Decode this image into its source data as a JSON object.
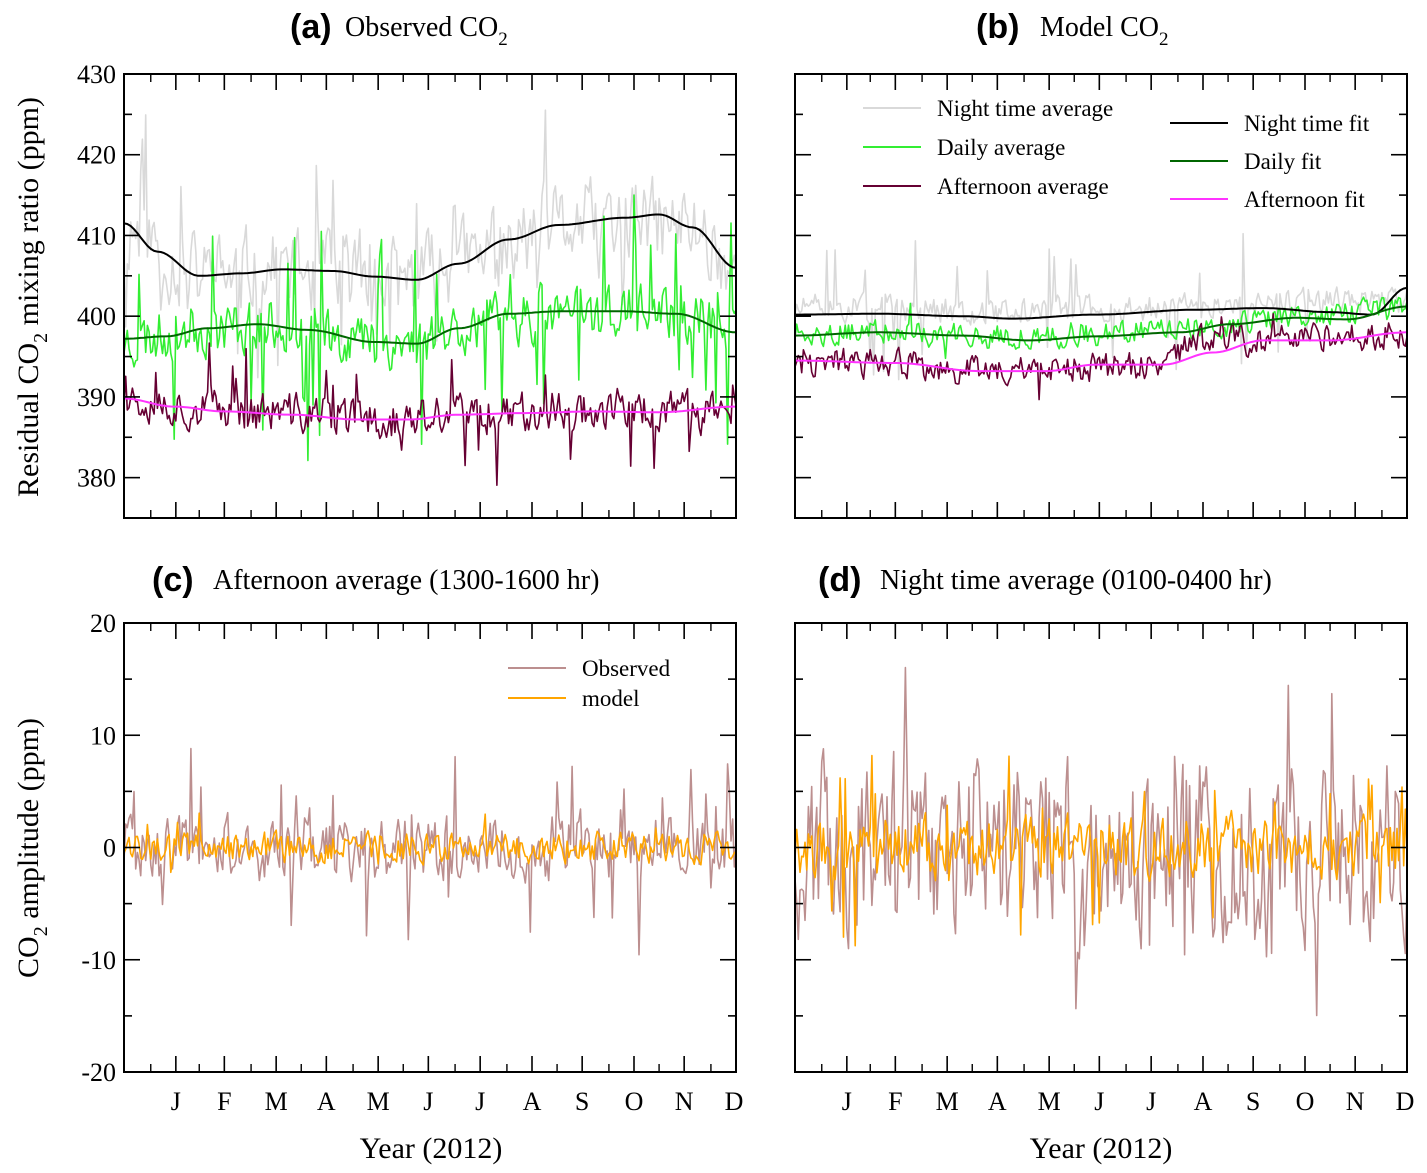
{
  "figure": {
    "xlabel": "Year (2012)",
    "ylabel_top": "Residual CO₂ mixing ratio (ppm)",
    "ylabel_bottom": "CO₂ amplitude (ppm)",
    "ylabel_top_parts": {
      "pre": "Residual CO",
      "sub": "2",
      "post": " mixing ratio (ppm)"
    },
    "ylabel_bottom_parts": {
      "pre": "CO",
      "sub": "2",
      "post": " amplitude (ppm)"
    },
    "month_ticks": [
      "J",
      "F",
      "M",
      "A",
      "M",
      "J",
      "J",
      "A",
      "S",
      "O",
      "N",
      "D"
    ]
  },
  "colors": {
    "night_avg": "#d9d9d9",
    "daily_avg": "#33ee33",
    "afternoon_avg": "#660033",
    "night_fit": "#000000",
    "daily_fit": "#006600",
    "afternoon_fit": "#ff33ff",
    "observed": "#bc8f8f",
    "model": "#ffa500"
  },
  "chart_data": [
    {
      "id": "a",
      "type": "line",
      "panel_letter": "(a)",
      "title": "Observed CO₂",
      "title_parts": {
        "pre": "Observed CO",
        "sub": "2"
      },
      "xlabel": "",
      "ylabel": "Residual CO₂ mixing ratio (ppm)",
      "xlim": [
        0,
        366
      ],
      "ylim": [
        375,
        430
      ],
      "yticks": [
        380,
        390,
        400,
        410,
        420,
        430
      ],
      "xtick_labels": [],
      "series": [
        {
          "key": "night_avg",
          "name": "Night time average",
          "kind": "noisy",
          "seed": 11,
          "base": [
            [
              0,
              411
            ],
            [
              45,
              405
            ],
            [
              90,
              406
            ],
            [
              120,
              405.5
            ],
            [
              165,
              404.5
            ],
            [
              210,
              407
            ],
            [
              255,
              411
            ],
            [
              300,
              412
            ],
            [
              340,
              411
            ],
            [
              366,
              406
            ]
          ],
          "amp": 6,
          "spike_prob": 0.09,
          "spike_amp": 11,
          "step": 1
        },
        {
          "key": "daily_avg",
          "name": "Daily average",
          "kind": "noisy",
          "seed": 23,
          "base": [
            [
              0,
              397
            ],
            [
              45,
              398.5
            ],
            [
              90,
              399
            ],
            [
              120,
              398
            ],
            [
              165,
              396.5
            ],
            [
              210,
              399
            ],
            [
              255,
              400.5
            ],
            [
              300,
              400.5
            ],
            [
              340,
              400
            ],
            [
              366,
              399
            ]
          ],
          "amp": 4,
          "spike_prob": 0.06,
          "spike_amp": 14,
          "step": 1
        },
        {
          "key": "afternoon_avg",
          "name": "Afternoon average",
          "kind": "noisy",
          "seed": 37,
          "base": [
            [
              0,
              390
            ],
            [
              45,
              388.5
            ],
            [
              90,
              388
            ],
            [
              165,
              387
            ],
            [
              210,
              388
            ],
            [
              255,
              388.5
            ],
            [
              300,
              388.5
            ],
            [
              340,
              388
            ],
            [
              366,
              389
            ]
          ],
          "amp": 3,
          "spike_prob": 0.05,
          "spike_amp": 7,
          "step": 1
        },
        {
          "key": "night_fit",
          "name": "Night time fit",
          "kind": "fit",
          "points": [
            [
              0,
              411.5
            ],
            [
              20,
              408
            ],
            [
              45,
              405
            ],
            [
              70,
              405.3
            ],
            [
              95,
              405.8
            ],
            [
              125,
              405.6
            ],
            [
              150,
              404.9
            ],
            [
              175,
              404.5
            ],
            [
              200,
              406.5
            ],
            [
              230,
              409.5
            ],
            [
              260,
              411.3
            ],
            [
              300,
              412.2
            ],
            [
              320,
              412.6
            ],
            [
              340,
              411
            ],
            [
              366,
              406
            ]
          ]
        },
        {
          "key": "daily_fit",
          "name": "Daily fit",
          "kind": "fit",
          "points": [
            [
              0,
              397.2
            ],
            [
              25,
              397.5
            ],
            [
              50,
              398.5
            ],
            [
              80,
              399
            ],
            [
              110,
              398.3
            ],
            [
              150,
              396.8
            ],
            [
              175,
              396.6
            ],
            [
              200,
              398.5
            ],
            [
              230,
              400.3
            ],
            [
              260,
              400.6
            ],
            [
              300,
              400.6
            ],
            [
              330,
              400.3
            ],
            [
              366,
              398
            ]
          ]
        },
        {
          "key": "afternoon_fit",
          "name": "Afternoon fit",
          "kind": "fit",
          "points": [
            [
              0,
              389.8
            ],
            [
              30,
              388.8
            ],
            [
              60,
              388.2
            ],
            [
              100,
              387.8
            ],
            [
              140,
              387.2
            ],
            [
              170,
              387.2
            ],
            [
              200,
              387.8
            ],
            [
              240,
              388
            ],
            [
              280,
              388.2
            ],
            [
              320,
              388.1
            ],
            [
              366,
              388.8
            ]
          ]
        }
      ]
    },
    {
      "id": "b",
      "type": "line",
      "panel_letter": "(b)",
      "title": "Model CO₂",
      "title_parts": {
        "pre": "Model CO",
        "sub": "2"
      },
      "xlabel": "",
      "ylabel": "",
      "xlim": [
        0,
        366
      ],
      "ylim": [
        375,
        430
      ],
      "yticks": [
        380,
        390,
        400,
        410,
        420,
        430
      ],
      "xtick_labels": [],
      "legend": {
        "columns": [
          [
            "night_avg",
            "daily_avg",
            "afternoon_avg"
          ],
          [
            "night_fit",
            "daily_fit",
            "afternoon_fit"
          ]
        ],
        "labels": {
          "night_avg": "Night time average",
          "daily_avg": "Daily average",
          "afternoon_avg": "Afternoon average",
          "night_fit": "Night time fit",
          "daily_fit": "Daily fit",
          "afternoon_fit": "Afternoon fit"
        }
      },
      "series": [
        {
          "key": "night_avg",
          "name": "Night time average",
          "kind": "noisy",
          "seed": 51,
          "base": [
            [
              0,
              401
            ],
            [
              60,
              401
            ],
            [
              120,
              400.5
            ],
            [
              200,
              401
            ],
            [
              280,
              401.5
            ],
            [
              366,
              402
            ]
          ],
          "amp": 2,
          "spike_prob": 0.08,
          "spike_amp": 9,
          "step": 1
        },
        {
          "key": "daily_avg",
          "name": "Daily average",
          "kind": "noisy",
          "seed": 63,
          "base": [
            [
              0,
              398
            ],
            [
              60,
              398
            ],
            [
              120,
              397.5
            ],
            [
              200,
              398
            ],
            [
              255,
              399
            ],
            [
              300,
              400
            ],
            [
              366,
              401
            ]
          ],
          "amp": 1.8,
          "spike_prob": 0.02,
          "spike_amp": 3,
          "step": 1
        },
        {
          "key": "afternoon_avg",
          "name": "Afternoon average",
          "kind": "noisy",
          "seed": 77,
          "base": [
            [
              0,
              394.5
            ],
            [
              60,
              394
            ],
            [
              120,
              393
            ],
            [
              170,
              393.5
            ],
            [
              210,
              394
            ],
            [
              250,
              397
            ],
            [
              300,
              397
            ],
            [
              366,
              398
            ]
          ],
          "amp": 2.2,
          "spike_prob": 0.02,
          "spike_amp": 3,
          "step": 1
        },
        {
          "key": "night_fit",
          "name": "Night time fit",
          "kind": "fit",
          "points": [
            [
              0,
              400.2
            ],
            [
              50,
              400.3
            ],
            [
              100,
              400
            ],
            [
              130,
              399.7
            ],
            [
              180,
              400.2
            ],
            [
              240,
              400.8
            ],
            [
              280,
              401
            ],
            [
              320,
              400.5
            ],
            [
              345,
              400.2
            ],
            [
              366,
              403.5
            ]
          ]
        },
        {
          "key": "daily_fit",
          "name": "Daily fit",
          "kind": "fit",
          "points": [
            [
              0,
              397.6
            ],
            [
              50,
              398
            ],
            [
              100,
              397.6
            ],
            [
              140,
              397
            ],
            [
              180,
              397.5
            ],
            [
              230,
              398
            ],
            [
              260,
              399
            ],
            [
              300,
              399.8
            ],
            [
              330,
              399.6
            ],
            [
              366,
              401.2
            ]
          ]
        },
        {
          "key": "afternoon_fit",
          "name": "Afternoon fit",
          "kind": "fit",
          "points": [
            [
              0,
              394.5
            ],
            [
              60,
              394.2
            ],
            [
              110,
              393.2
            ],
            [
              150,
              393.2
            ],
            [
              180,
              394
            ],
            [
              220,
              394
            ],
            [
              250,
              395.5
            ],
            [
              280,
              397
            ],
            [
              320,
              397
            ],
            [
              366,
              398
            ]
          ]
        }
      ]
    },
    {
      "id": "c",
      "type": "line",
      "panel_letter": "(c)",
      "title": "Afternoon average (1300-1600 hr)",
      "xlabel": "Year (2012)",
      "ylabel": "CO₂ amplitude (ppm)",
      "xlim": [
        0,
        366
      ],
      "ylim": [
        -20,
        20
      ],
      "yticks": [
        -20,
        -10,
        0,
        10,
        20
      ],
      "xtick_labels": [
        "J",
        "F",
        "M",
        "A",
        "M",
        "J",
        "J",
        "A",
        "S",
        "O",
        "N",
        "D"
      ],
      "legend": {
        "columns": [
          [
            "observed",
            "model"
          ]
        ],
        "labels": {
          "observed": "Observed",
          "model": "model"
        }
      },
      "series": [
        {
          "key": "observed",
          "name": "Observed",
          "kind": "noisy",
          "seed": 101,
          "base": [
            [
              0,
              0
            ],
            [
              366,
              0
            ]
          ],
          "amp": 3.5,
          "spike_prob": 0.08,
          "spike_amp": 7,
          "step": 1
        },
        {
          "key": "model",
          "name": "model",
          "kind": "noisy",
          "seed": 131,
          "base": [
            [
              0,
              0
            ],
            [
              366,
              0
            ]
          ],
          "amp": 1.6,
          "spike_prob": 0.02,
          "spike_amp": 3,
          "step": 1
        }
      ]
    },
    {
      "id": "d",
      "type": "line",
      "panel_letter": "(d)",
      "title": "Night time average (0100-0400 hr)",
      "xlabel": "Year (2012)",
      "ylabel": "",
      "xlim": [
        0,
        366
      ],
      "ylim": [
        -20,
        20
      ],
      "yticks": [
        -20,
        -10,
        0,
        10,
        20
      ],
      "xtick_labels": [
        "J",
        "F",
        "M",
        "A",
        "M",
        "J",
        "J",
        "A",
        "S",
        "O",
        "N",
        "D"
      ],
      "series": [
        {
          "key": "observed",
          "name": "Observed",
          "kind": "noisy",
          "seed": 151,
          "base": [
            [
              0,
              0
            ],
            [
              366,
              0
            ]
          ],
          "amp": 9,
          "spike_prob": 0.1,
          "spike_amp": 8,
          "step": 1
        },
        {
          "key": "model",
          "name": "model",
          "kind": "noisy",
          "seed": 171,
          "base": [
            [
              0,
              0
            ],
            [
              366,
              0
            ]
          ],
          "amp": 3.2,
          "spike_prob": 0.05,
          "spike_amp": 7,
          "step": 1
        }
      ]
    }
  ]
}
